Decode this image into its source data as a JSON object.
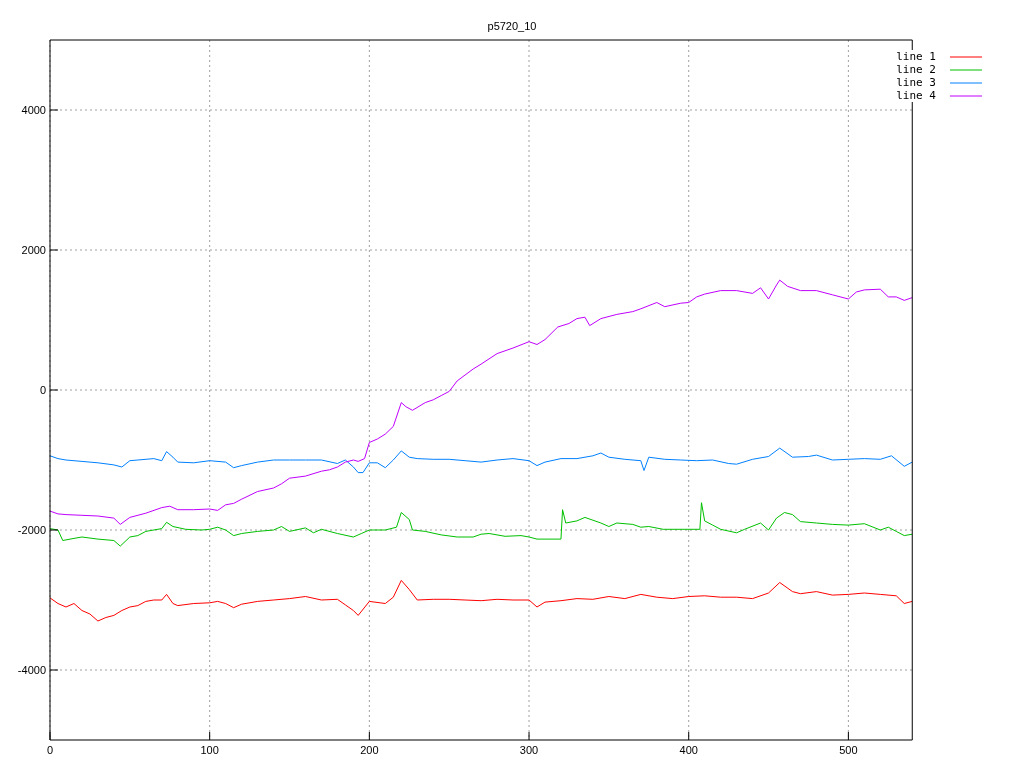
{
  "chart_data": {
    "type": "line",
    "title": "p5720_10",
    "xlim": [
      0,
      540
    ],
    "xticks": [
      0,
      100,
      200,
      300,
      400,
      500
    ],
    "ylim": [
      -5000,
      5000
    ],
    "yticks": [
      -4000,
      -2000,
      0,
      2000,
      4000
    ],
    "grid": true,
    "legend": "top right",
    "marker": "none",
    "line_style": "solid",
    "series": [
      {
        "name": "line 1",
        "color": "#ff0000",
        "x": [
          0,
          5,
          10,
          15,
          20,
          25,
          30,
          35,
          40,
          45,
          50,
          55,
          60,
          65,
          70,
          73,
          77,
          80,
          90,
          100,
          105,
          110,
          115,
          120,
          130,
          140,
          150,
          160,
          170,
          180,
          185,
          190,
          193,
          200,
          210,
          215,
          220,
          225,
          230,
          240,
          250,
          260,
          270,
          280,
          290,
          300,
          305,
          310,
          320,
          330,
          340,
          350,
          360,
          370,
          380,
          390,
          400,
          410,
          420,
          430,
          440,
          450,
          457,
          465,
          470,
          480,
          490,
          500,
          510,
          520,
          530,
          535,
          540
        ],
        "values": [
          -2970,
          -3050,
          -3100,
          -3050,
          -3150,
          -3200,
          -3300,
          -3250,
          -3220,
          -3150,
          -3100,
          -3080,
          -3020,
          -3000,
          -3000,
          -2920,
          -3050,
          -3080,
          -3050,
          -3040,
          -3020,
          -3050,
          -3110,
          -3060,
          -3020,
          -3000,
          -2980,
          -2950,
          -3000,
          -2990,
          -3070,
          -3150,
          -3220,
          -3020,
          -3050,
          -2960,
          -2720,
          -2850,
          -3000,
          -2990,
          -2990,
          -3000,
          -3010,
          -2990,
          -3000,
          -3000,
          -3100,
          -3030,
          -3010,
          -2980,
          -2990,
          -2950,
          -2980,
          -2920,
          -2960,
          -2980,
          -2950,
          -2940,
          -2960,
          -2960,
          -2980,
          -2900,
          -2750,
          -2880,
          -2910,
          -2880,
          -2930,
          -2920,
          -2900,
          -2920,
          -2940,
          -3050,
          -3020
        ]
      },
      {
        "name": "line 2",
        "color": "#00c000",
        "x": [
          0,
          5,
          8,
          15,
          20,
          30,
          40,
          44,
          50,
          55,
          60,
          70,
          73,
          77,
          85,
          95,
          100,
          105,
          110,
          115,
          120,
          130,
          140,
          145,
          150,
          160,
          165,
          170,
          180,
          190,
          195,
          200,
          210,
          217,
          220,
          225,
          227,
          235,
          245,
          255,
          265,
          270,
          275,
          285,
          295,
          300,
          305,
          320,
          321,
          323,
          330,
          335,
          345,
          350,
          355,
          365,
          370,
          375,
          384,
          407,
          408,
          410,
          415,
          420,
          430,
          435,
          445,
          450,
          455,
          460,
          465,
          470,
          480,
          490,
          500,
          510,
          520,
          525,
          530,
          535,
          540
        ],
        "values": [
          -1980,
          -2000,
          -2150,
          -2120,
          -2100,
          -2130,
          -2150,
          -2230,
          -2100,
          -2080,
          -2020,
          -1980,
          -1890,
          -1950,
          -1990,
          -2000,
          -1990,
          -1960,
          -2000,
          -2080,
          -2050,
          -2020,
          -2000,
          -1950,
          -2020,
          -1970,
          -2040,
          -1990,
          -2050,
          -2100,
          -2050,
          -2000,
          -2000,
          -1960,
          -1750,
          -1850,
          -2000,
          -2020,
          -2070,
          -2100,
          -2100,
          -2060,
          -2050,
          -2090,
          -2080,
          -2100,
          -2130,
          -2130,
          -1710,
          -1900,
          -1870,
          -1820,
          -1900,
          -1950,
          -1900,
          -1920,
          -1960,
          -1950,
          -1990,
          -1990,
          -1610,
          -1870,
          -1930,
          -1990,
          -2040,
          -1990,
          -1900,
          -2000,
          -1830,
          -1750,
          -1780,
          -1880,
          -1900,
          -1920,
          -1930,
          -1910,
          -2000,
          -1960,
          -2020,
          -2080,
          -2060
        ]
      },
      {
        "name": "line 3",
        "color": "#0080ff",
        "x": [
          0,
          5,
          10,
          20,
          30,
          40,
          45,
          50,
          55,
          65,
          70,
          73,
          77,
          80,
          90,
          100,
          110,
          115,
          120,
          130,
          140,
          150,
          160,
          170,
          180,
          185,
          190,
          193,
          196,
          200,
          205,
          210,
          215,
          220,
          225,
          230,
          240,
          250,
          260,
          270,
          280,
          290,
          300,
          305,
          310,
          320,
          330,
          340,
          345,
          350,
          360,
          370,
          372,
          375,
          385,
          395,
          405,
          415,
          425,
          430,
          440,
          450,
          457,
          465,
          475,
          480,
          490,
          500,
          510,
          520,
          527,
          535,
          540
        ],
        "values": [
          -940,
          -980,
          -1000,
          -1020,
          -1040,
          -1070,
          -1100,
          -1010,
          -1000,
          -980,
          -1010,
          -880,
          -960,
          -1030,
          -1040,
          -1010,
          -1030,
          -1110,
          -1080,
          -1030,
          -1000,
          -1000,
          -1000,
          -1000,
          -1050,
          -1000,
          -1100,
          -1180,
          -1180,
          -1040,
          -1040,
          -1110,
          -1000,
          -870,
          -960,
          -980,
          -990,
          -990,
          -1010,
          -1030,
          -1000,
          -980,
          -1010,
          -1080,
          -1030,
          -980,
          -980,
          -940,
          -900,
          -960,
          -990,
          -1010,
          -1150,
          -960,
          -990,
          -1000,
          -1010,
          -1000,
          -1050,
          -1060,
          -990,
          -950,
          -830,
          -960,
          -950,
          -930,
          -1000,
          -990,
          -980,
          -990,
          -940,
          -1090,
          -1030
        ]
      },
      {
        "name": "line 4",
        "color": "#c000ff",
        "x": [
          0,
          5,
          10,
          20,
          30,
          40,
          44,
          50,
          60,
          70,
          75,
          80,
          90,
          100,
          105,
          110,
          115,
          120,
          130,
          140,
          145,
          150,
          160,
          170,
          175,
          180,
          185,
          190,
          193,
          197,
          200,
          205,
          210,
          215,
          220,
          223,
          227,
          235,
          240,
          245,
          250,
          255,
          265,
          270,
          280,
          290,
          300,
          305,
          310,
          318,
          325,
          330,
          335,
          338,
          345,
          355,
          365,
          370,
          380,
          385,
          395,
          400,
          405,
          410,
          420,
          430,
          440,
          445,
          450,
          455,
          457,
          462,
          470,
          480,
          490,
          500,
          505,
          510,
          520,
          525,
          530,
          535,
          540
        ],
        "values": [
          -1730,
          -1770,
          -1780,
          -1790,
          -1800,
          -1830,
          -1920,
          -1820,
          -1760,
          -1680,
          -1660,
          -1710,
          -1710,
          -1700,
          -1720,
          -1640,
          -1620,
          -1560,
          -1450,
          -1400,
          -1340,
          -1260,
          -1230,
          -1160,
          -1140,
          -1100,
          -1030,
          -1000,
          -1020,
          -980,
          -750,
          -700,
          -630,
          -520,
          -180,
          -240,
          -290,
          -180,
          -140,
          -80,
          -20,
          130,
          300,
          370,
          520,
          600,
          690,
          650,
          720,
          900,
          950,
          1020,
          1040,
          920,
          1020,
          1080,
          1120,
          1160,
          1250,
          1190,
          1240,
          1250,
          1330,
          1370,
          1420,
          1420,
          1380,
          1460,
          1300,
          1500,
          1570,
          1480,
          1420,
          1420,
          1360,
          1300,
          1400,
          1430,
          1440,
          1330,
          1330,
          1280,
          1320
        ]
      }
    ]
  }
}
